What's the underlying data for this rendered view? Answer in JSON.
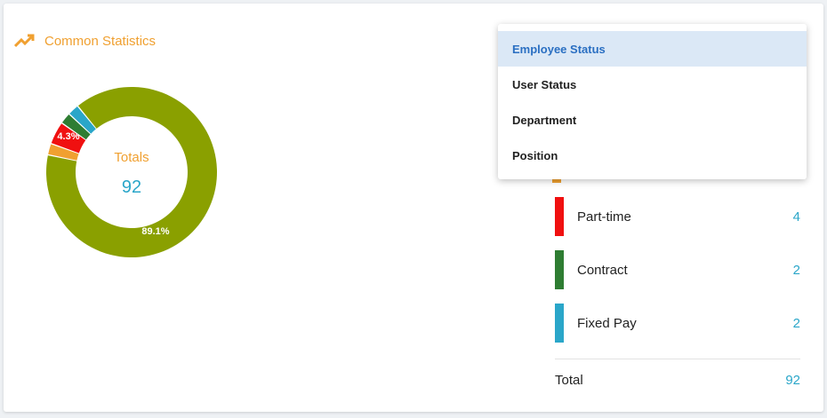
{
  "header": {
    "title": "Common Statistics",
    "icon": "trending-up-icon"
  },
  "donut": {
    "center_title": "Totals",
    "center_value": "92",
    "major_label": "89.1%",
    "minor_label": "4.3%"
  },
  "dropdown": {
    "items": [
      {
        "label": "Employee Status",
        "selected": true
      },
      {
        "label": "User Status",
        "selected": false
      },
      {
        "label": "Department",
        "selected": false
      },
      {
        "label": "Position",
        "selected": false
      }
    ]
  },
  "legend": {
    "items": [
      {
        "label": "Part-time",
        "value": "4",
        "color": "#f01010"
      },
      {
        "label": "Contract",
        "value": "2",
        "color": "#2e7d32"
      },
      {
        "label": "Fixed Pay",
        "value": "2",
        "color": "#2aa6c9"
      }
    ],
    "total_label": "Total",
    "total_value": "92"
  },
  "chart_data": {
    "type": "pie",
    "categories": [
      "",
      "",
      "Part-time",
      "Contract",
      "Fixed Pay"
    ],
    "values": [
      82,
      2,
      4,
      2,
      2
    ],
    "colors": [
      "#8aa000",
      "#f0a030",
      "#f01010",
      "#2e7d32",
      "#2aa6c9"
    ],
    "data_labels": [
      "89.1%",
      "",
      "4.3%",
      "",
      ""
    ]
  }
}
